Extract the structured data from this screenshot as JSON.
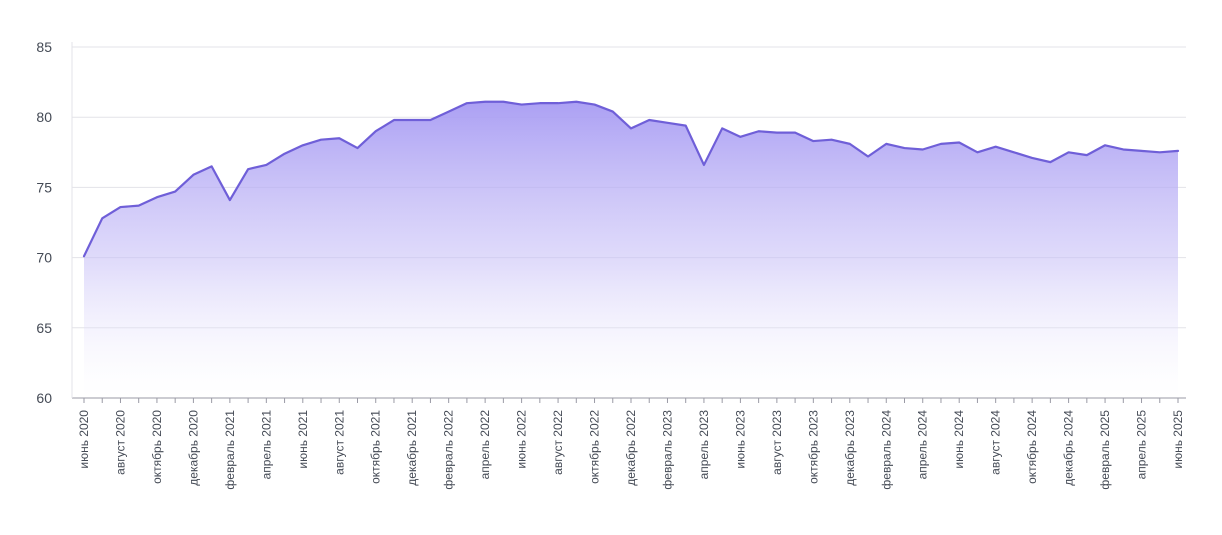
{
  "chart_data": {
    "type": "area",
    "colors": {
      "line": "#6f5fd8",
      "fill_top": "#a79bf3",
      "grid": "#e3e3e8",
      "axis": "#9a9aa5",
      "text": "#444a55"
    },
    "ylim": [
      60,
      85
    ],
    "yticks": [
      "60",
      "65",
      "70",
      "75",
      "80",
      "85"
    ],
    "grid": true,
    "x": [
      "июнь 2020",
      "июль 2020",
      "август 2020",
      "сентябрь 2020",
      "октябрь 2020",
      "ноябрь 2020",
      "декабрь 2020",
      "январь 2021",
      "февраль 2021",
      "март 2021",
      "апрель 2021",
      "май 2021",
      "июнь 2021",
      "июль 2021",
      "август 2021",
      "сентябрь 2021",
      "октябрь 2021",
      "ноябрь 2021",
      "декабрь 2021",
      "январь 2022",
      "февраль 2022",
      "март 2022",
      "апрель 2022",
      "май 2022",
      "июнь 2022",
      "июль 2022",
      "август 2022",
      "сентябрь 2022",
      "октябрь 2022",
      "ноябрь 2022",
      "декабрь 2022",
      "январь 2023",
      "февраль 2023",
      "март 2023",
      "апрель 2023",
      "май 2023",
      "июнь 2023",
      "июль 2023",
      "август 2023",
      "сентябрь 2023",
      "октябрь 2023",
      "ноябрь 2023",
      "декабрь 2023",
      "январь 2024",
      "февраль 2024",
      "март 2024",
      "апрель 2024",
      "май 2024",
      "июнь 2024",
      "июль 2024",
      "август 2024",
      "сентябрь 2024",
      "октябрь 2024",
      "ноябрь 2024",
      "декабрь 2024",
      "январь 2025",
      "февраль 2025",
      "март 2025",
      "апрель 2025",
      "май 2025",
      "июнь 2025"
    ],
    "xtick_labels": [
      "июнь 2020",
      "",
      "август 2020",
      "",
      "октябрь 2020",
      "",
      "декабрь 2020",
      "",
      "февраль 2021",
      "",
      "апрель 2021",
      "",
      "июнь 2021",
      "",
      "август 2021",
      "",
      "октябрь 2021",
      "",
      "декабрь 2021",
      "",
      "февраль 2022",
      "",
      "апрель 2022",
      "",
      "июнь 2022",
      "",
      "август 2022",
      "",
      "октябрь 2022",
      "",
      "декабрь 2022",
      "",
      "февраль 2023",
      "",
      "апрель 2023",
      "",
      "июнь 2023",
      "",
      "август 2023",
      "",
      "октябрь 2023",
      "",
      "декабрь 2023",
      "",
      "февраль 2024",
      "",
      "апрель 2024",
      "",
      "июнь 2024",
      "",
      "август 2024",
      "",
      "октябрь 2024",
      "",
      "декабрь 2024",
      "",
      "февраль 2025",
      "",
      "апрель 2025",
      "",
      "июнь 2025"
    ],
    "series": [
      {
        "values": [
          70.1,
          72.8,
          73.6,
          73.7,
          74.3,
          74.7,
          75.9,
          76.5,
          74.1,
          76.3,
          76.6,
          77.4,
          78.0,
          78.4,
          78.5,
          77.8,
          79.0,
          79.8,
          79.8,
          79.8,
          80.4,
          81.0,
          81.1,
          81.1,
          80.9,
          81.0,
          81.0,
          81.1,
          80.9,
          80.4,
          79.2,
          79.8,
          79.6,
          79.4,
          76.6,
          79.2,
          78.6,
          79.0,
          78.9,
          78.9,
          78.3,
          78.4,
          78.1,
          77.2,
          78.1,
          77.8,
          77.7,
          78.1,
          78.2,
          77.5,
          77.9,
          77.5,
          77.1,
          76.8,
          77.5,
          77.3,
          78.0,
          77.7,
          77.6,
          77.5,
          77.6
        ]
      }
    ]
  }
}
